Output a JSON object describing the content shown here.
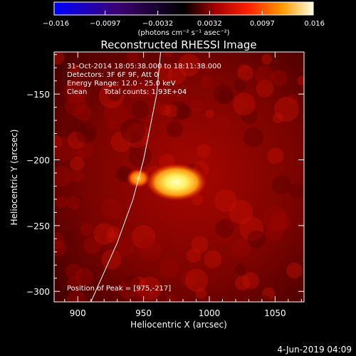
{
  "chart_data": {
    "type": "heatmap",
    "title": "Reconstructed RHESSI Image",
    "xlabel": "Heliocentric X (arcsec)",
    "ylabel": "Heliocentric Y (arcsec)",
    "xlim": [
      882,
      1072
    ],
    "ylim": [
      -308,
      -118
    ],
    "x_ticks": [
      900,
      950,
      1000,
      1050
    ],
    "y_ticks": [
      -150,
      -200,
      -250,
      -300
    ],
    "colorbar": {
      "colormap": "hot (black-blue-purple-red-orange-yellow-white)",
      "range": [
        -0.016,
        0.016
      ],
      "tick_labels": [
        "-0.016",
        "-0.0097",
        "-0.0032",
        "0.0032",
        "0.0097",
        "0.016"
      ],
      "unit_label": "(photons cm⁻² s⁻¹ asec⁻²)"
    },
    "annotations": {
      "time_range": "31-Oct-2014 18:05:38.000 to 18:11:38.000",
      "detectors": "Detectors: 3F 6F 9F, Att 0",
      "energy_range": "Energy Range: 12.0 - 25.0 keV",
      "algorithm": "Clean",
      "total_counts": "Total counts: 1.93E+04",
      "peak": "Position of Peak = [975,-217]"
    },
    "peak": {
      "x": 975,
      "y": -217
    },
    "secondary_source": {
      "x": 946,
      "y": -214
    },
    "limb_points": [
      [
        910,
        -308
      ],
      [
        930,
        -263
      ],
      [
        942,
        -230
      ],
      [
        950,
        -200
      ],
      [
        955,
        -175
      ],
      [
        960,
        -150
      ],
      [
        963,
        -118
      ]
    ],
    "footer_date": "4-Jun-2019 04:09"
  }
}
